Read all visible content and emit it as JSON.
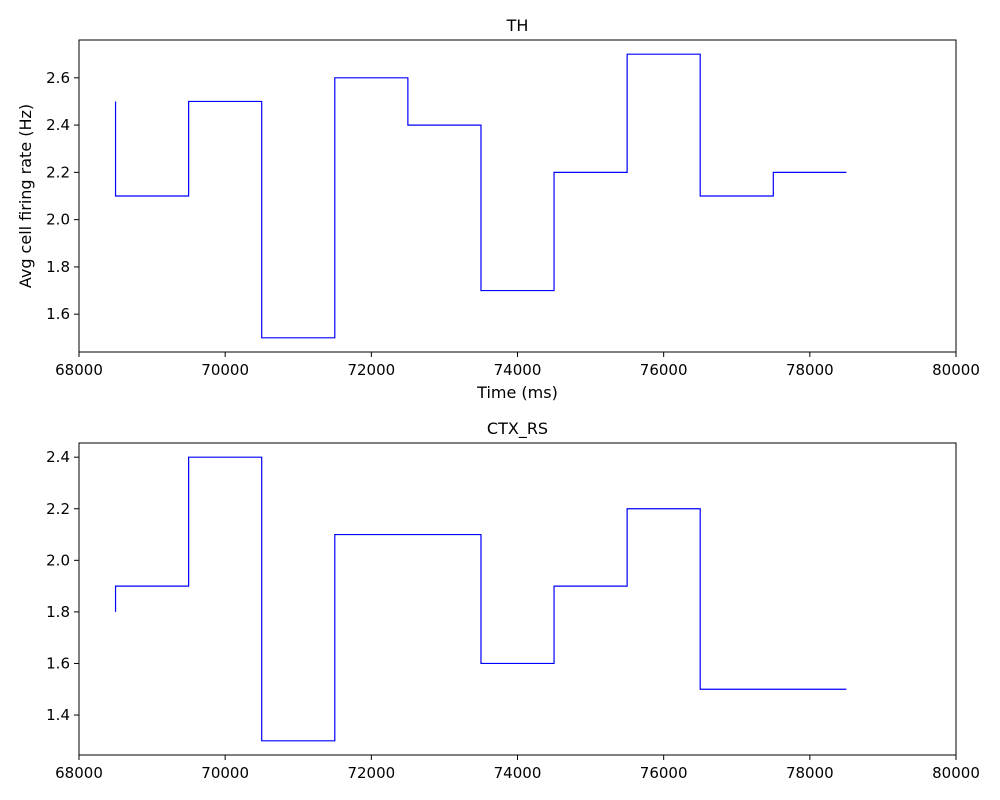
{
  "chart_data": [
    {
      "type": "line",
      "title": "TH",
      "xlabel": "Time (ms)",
      "ylabel": "Avg cell firing rate (Hz)",
      "xlim": [
        68000,
        80000
      ],
      "ylim": [
        1.44,
        2.76
      ],
      "xticks": [
        68000,
        70000,
        72000,
        74000,
        76000,
        78000,
        80000
      ],
      "yticks": [
        1.6,
        1.8,
        2.0,
        2.2,
        2.4,
        2.6
      ],
      "xtick_labels": [
        "68000",
        "70000",
        "72000",
        "74000",
        "76000",
        "78000",
        "80000"
      ],
      "ytick_labels": [
        "1.6",
        "1.8",
        "2.0",
        "2.2",
        "2.4",
        "2.6"
      ],
      "grid": false,
      "series": [
        {
          "color": "#0000ff",
          "x": [
            68500,
            68500,
            69500,
            69500,
            70500,
            70500,
            71500,
            71500,
            72500,
            72500,
            73500,
            73500,
            74500,
            74500,
            75500,
            75500,
            76500,
            76500,
            77500,
            77500,
            78500
          ],
          "y": [
            2.5,
            2.1,
            2.1,
            2.5,
            2.5,
            1.5,
            1.5,
            2.6,
            2.6,
            2.4,
            2.4,
            1.7,
            1.7,
            2.2,
            2.2,
            2.7,
            2.7,
            2.1,
            2.1,
            2.2,
            2.2
          ]
        }
      ]
    },
    {
      "type": "line",
      "title": "CTX_RS",
      "xlabel": "",
      "ylabel": "",
      "xlim": [
        68000,
        80000
      ],
      "ylim": [
        1.245,
        2.455
      ],
      "xticks": [
        68000,
        70000,
        72000,
        74000,
        76000,
        78000,
        80000
      ],
      "yticks": [
        1.4,
        1.6,
        1.8,
        2.0,
        2.2,
        2.4
      ],
      "xtick_labels": [
        "68000",
        "70000",
        "72000",
        "74000",
        "76000",
        "78000",
        "80000"
      ],
      "ytick_labels": [
        "1.4",
        "1.6",
        "1.8",
        "2.0",
        "2.2",
        "2.4"
      ],
      "grid": false,
      "series": [
        {
          "color": "#0000ff",
          "x": [
            68500,
            68500,
            69500,
            69500,
            70500,
            70500,
            71500,
            71500,
            73500,
            73500,
            74500,
            74500,
            75500,
            75500,
            76500,
            76500,
            78500
          ],
          "y": [
            1.8,
            1.9,
            1.9,
            2.4,
            2.4,
            1.3,
            1.3,
            2.1,
            2.1,
            1.6,
            1.6,
            1.9,
            1.9,
            2.2,
            2.2,
            1.5,
            1.5
          ]
        }
      ]
    }
  ]
}
